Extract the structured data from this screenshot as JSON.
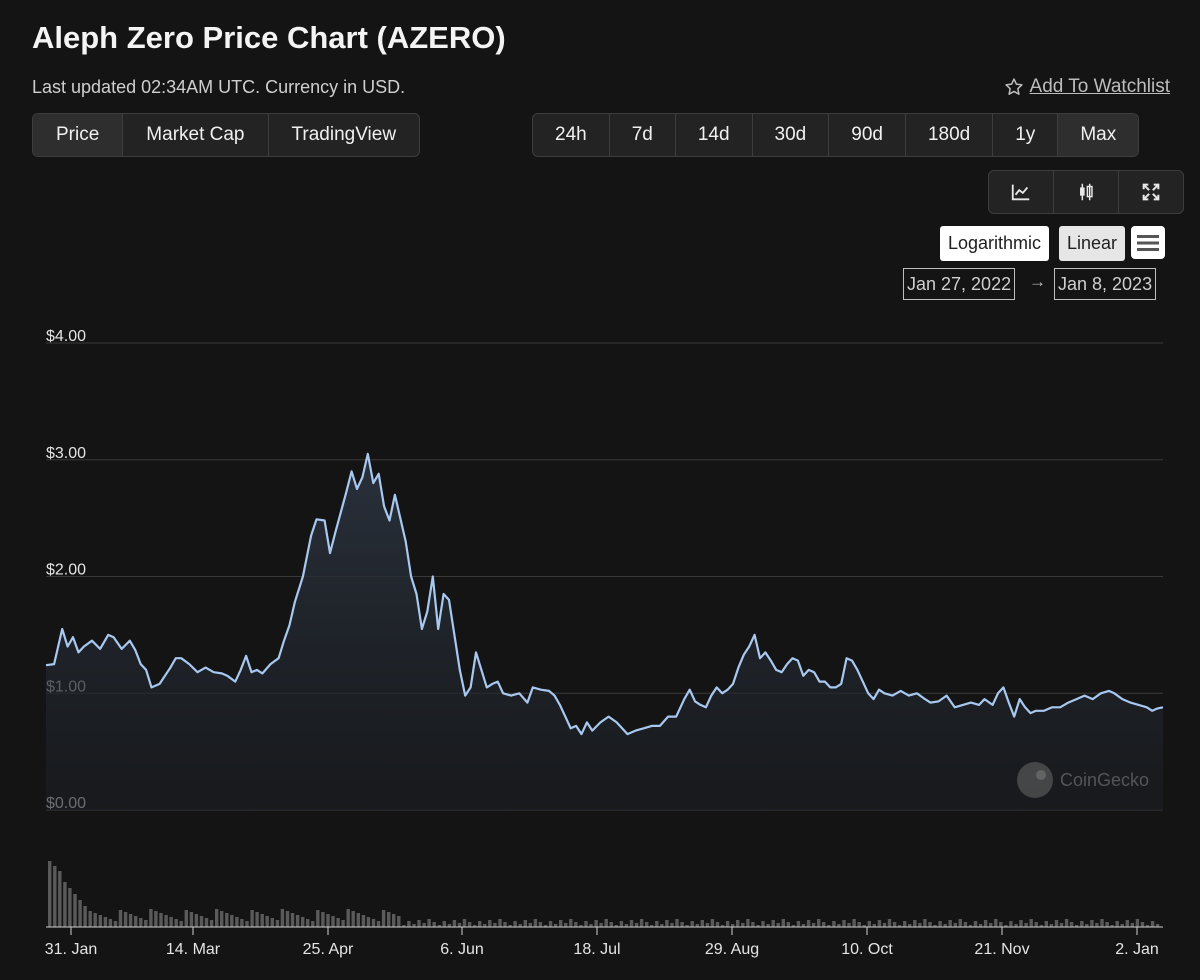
{
  "header": {
    "title": "Aleph Zero Price Chart (AZERO)",
    "subtitle": "Last updated 02:34AM UTC. Currency in USD.",
    "watchlist_label": "Add To Watchlist"
  },
  "chart_type_tabs": [
    {
      "label": "Price",
      "active": true
    },
    {
      "label": "Market Cap",
      "active": false
    },
    {
      "label": "TradingView",
      "active": false
    }
  ],
  "range_tabs": [
    {
      "label": "24h"
    },
    {
      "label": "7d"
    },
    {
      "label": "14d"
    },
    {
      "label": "30d"
    },
    {
      "label": "90d"
    },
    {
      "label": "180d"
    },
    {
      "label": "1y"
    },
    {
      "label": "Max",
      "active": true
    }
  ],
  "tools": [
    "line-chart-icon",
    "candlestick-icon",
    "fullscreen-icon"
  ],
  "scale": {
    "log_label": "Logarithmic",
    "linear_label": "Linear"
  },
  "date_range": {
    "from": "Jan 27, 2022",
    "to": "Jan 8, 2023"
  },
  "watermark": "CoinGecko",
  "colors": {
    "line": "#a8c8f0",
    "background": "#141414",
    "volume": "#5a5a5a"
  },
  "chart_data": {
    "type": "area",
    "title": "",
    "xlabel": "",
    "ylabel": "",
    "ylim": [
      0,
      4
    ],
    "y_ticks": [
      "$0.00",
      "$1.00",
      "$2.00",
      "$3.00",
      "$4.00"
    ],
    "x_ticks": [
      "31. Jan",
      "14. Mar",
      "25. Apr",
      "6. Jun",
      "18. Jul",
      "29. Aug",
      "10. Oct",
      "21. Nov",
      "2. Jan"
    ],
    "series": [
      {
        "values": [
          [
            0,
            1.24
          ],
          [
            3,
            1.25
          ],
          [
            6,
            1.55
          ],
          [
            8,
            1.4
          ],
          [
            10,
            1.48
          ],
          [
            12,
            1.35
          ],
          [
            14,
            1.4
          ],
          [
            17,
            1.45
          ],
          [
            20,
            1.38
          ],
          [
            23,
            1.5
          ],
          [
            25,
            1.48
          ],
          [
            28,
            1.38
          ],
          [
            31,
            1.45
          ],
          [
            33,
            1.37
          ],
          [
            35,
            1.25
          ],
          [
            37,
            1.2
          ],
          [
            39,
            1.05
          ],
          [
            42,
            1.08
          ],
          [
            44,
            1.15
          ],
          [
            46,
            1.22
          ],
          [
            48,
            1.3
          ],
          [
            50,
            1.3
          ],
          [
            53,
            1.25
          ],
          [
            56,
            1.18
          ],
          [
            59,
            1.22
          ],
          [
            62,
            1.18
          ],
          [
            65,
            1.17
          ],
          [
            67,
            1.15
          ],
          [
            70,
            1.1
          ],
          [
            72,
            1.2
          ],
          [
            74,
            1.32
          ],
          [
            76,
            1.18
          ],
          [
            78,
            1.2
          ],
          [
            80,
            1.17
          ],
          [
            83,
            1.25
          ],
          [
            86,
            1.3
          ],
          [
            88,
            1.45
          ],
          [
            90,
            1.58
          ],
          [
            92,
            1.78
          ],
          [
            95,
            2.0
          ],
          [
            98,
            2.35
          ],
          [
            100,
            2.49
          ],
          [
            103,
            2.48
          ],
          [
            105,
            2.2
          ],
          [
            107,
            2.38
          ],
          [
            109,
            2.55
          ],
          [
            111,
            2.72
          ],
          [
            113,
            2.9
          ],
          [
            115,
            2.75
          ],
          [
            117,
            2.85
          ],
          [
            119,
            3.05
          ],
          [
            121,
            2.8
          ],
          [
            123,
            2.88
          ],
          [
            125,
            2.6
          ],
          [
            127,
            2.48
          ],
          [
            129,
            2.7
          ],
          [
            131,
            2.5
          ],
          [
            133,
            2.3
          ],
          [
            135,
            2.0
          ],
          [
            137,
            1.85
          ],
          [
            139,
            1.55
          ],
          [
            141,
            1.7
          ],
          [
            143,
            2.0
          ],
          [
            145,
            1.55
          ],
          [
            147,
            1.85
          ],
          [
            149,
            1.8
          ],
          [
            151,
            1.5
          ],
          [
            153,
            1.2
          ],
          [
            155,
            0.98
          ],
          [
            157,
            1.05
          ],
          [
            159,
            1.35
          ],
          [
            161,
            1.2
          ],
          [
            163,
            1.05
          ],
          [
            165,
            1.08
          ],
          [
            167,
            1.1
          ],
          [
            169,
            1.0
          ],
          [
            172,
            0.98
          ],
          [
            175,
            1.0
          ],
          [
            178,
            0.92
          ],
          [
            180,
            1.05
          ],
          [
            183,
            1.03
          ],
          [
            186,
            1.02
          ],
          [
            188,
            0.98
          ],
          [
            190,
            0.9
          ],
          [
            192,
            0.8
          ],
          [
            194,
            0.7
          ],
          [
            196,
            0.72
          ],
          [
            198,
            0.65
          ],
          [
            200,
            0.75
          ],
          [
            202,
            0.68
          ],
          [
            205,
            0.75
          ],
          [
            208,
            0.8
          ],
          [
            211,
            0.75
          ],
          [
            213,
            0.7
          ],
          [
            215,
            0.65
          ],
          [
            218,
            0.68
          ],
          [
            221,
            0.7
          ],
          [
            224,
            0.72
          ],
          [
            227,
            0.72
          ],
          [
            230,
            0.8
          ],
          [
            233,
            0.8
          ],
          [
            236,
            0.95
          ],
          [
            238,
            1.03
          ],
          [
            240,
            0.93
          ],
          [
            242,
            0.9
          ],
          [
            244,
            0.88
          ],
          [
            246,
            0.98
          ],
          [
            248,
            1.05
          ],
          [
            250,
            1.0
          ],
          [
            252,
            1.03
          ],
          [
            254,
            1.08
          ],
          [
            256,
            1.22
          ],
          [
            258,
            1.33
          ],
          [
            260,
            1.4
          ],
          [
            262,
            1.5
          ],
          [
            264,
            1.3
          ],
          [
            266,
            1.35
          ],
          [
            268,
            1.28
          ],
          [
            270,
            1.2
          ],
          [
            272,
            1.18
          ],
          [
            274,
            1.25
          ],
          [
            276,
            1.3
          ],
          [
            278,
            1.28
          ],
          [
            280,
            1.15
          ],
          [
            282,
            1.2
          ],
          [
            284,
            1.18
          ],
          [
            286,
            1.1
          ],
          [
            288,
            1.1
          ],
          [
            290,
            1.05
          ],
          [
            292,
            1.05
          ],
          [
            294,
            1.08
          ],
          [
            296,
            1.3
          ],
          [
            298,
            1.28
          ],
          [
            300,
            1.2
          ],
          [
            302,
            1.1
          ],
          [
            304,
            1.0
          ],
          [
            306,
            0.95
          ],
          [
            308,
            1.03
          ],
          [
            310,
            1.0
          ],
          [
            313,
            0.98
          ],
          [
            316,
            1.02
          ],
          [
            319,
            0.98
          ],
          [
            322,
            1.0
          ],
          [
            325,
            0.95
          ],
          [
            327,
            0.92
          ],
          [
            330,
            0.93
          ],
          [
            333,
            0.98
          ],
          [
            336,
            0.88
          ],
          [
            339,
            0.9
          ],
          [
            342,
            0.92
          ],
          [
            345,
            0.9
          ],
          [
            347,
            0.95
          ],
          [
            350,
            0.9
          ],
          [
            352,
            1.0
          ],
          [
            354,
            1.05
          ],
          [
            356,
            0.92
          ],
          [
            358,
            0.8
          ],
          [
            360,
            0.95
          ],
          [
            362,
            0.88
          ],
          [
            364,
            0.83
          ],
          [
            366,
            0.85
          ],
          [
            369,
            0.85
          ],
          [
            372,
            0.88
          ],
          [
            375,
            0.88
          ],
          [
            378,
            0.92
          ],
          [
            381,
            0.95
          ],
          [
            384,
            0.98
          ],
          [
            387,
            0.95
          ],
          [
            390,
            1.0
          ],
          [
            393,
            1.02
          ],
          [
            395,
            1.0
          ],
          [
            398,
            0.95
          ],
          [
            401,
            0.92
          ],
          [
            404,
            0.9
          ],
          [
            407,
            0.88
          ],
          [
            409,
            0.85
          ],
          [
            411,
            0.87
          ],
          [
            413,
            0.88
          ]
        ]
      }
    ]
  }
}
